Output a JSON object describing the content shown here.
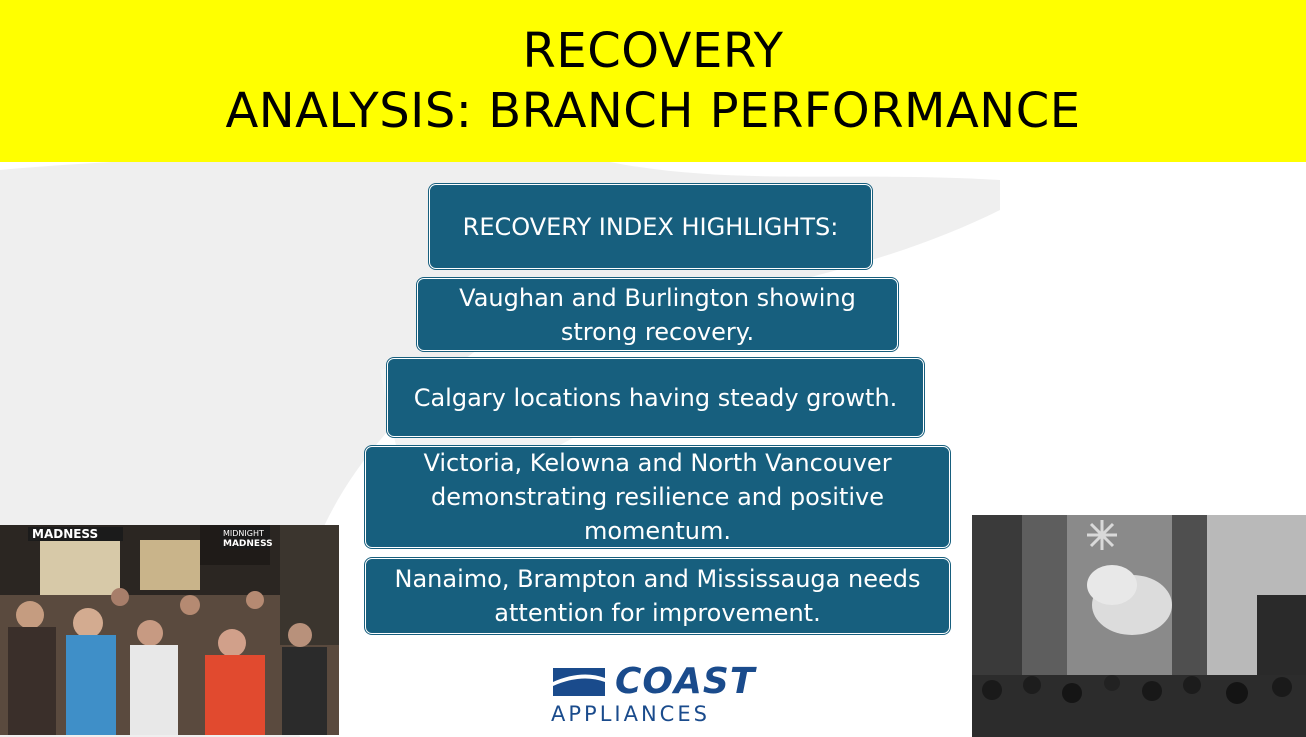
{
  "header": {
    "title_line1": "RECOVERY",
    "title_line2": "ANALYSIS: BRANCH PERFORMANCE"
  },
  "highlights": {
    "heading": "RECOVERY INDEX HIGHLIGHTS:",
    "items": [
      "Vaughan and Burlington showing strong recovery.",
      "Calgary locations having steady growth.",
      "Victoria, Kelowna and North Vancouver demonstrating resilience and positive momentum.",
      "Nanaimo, Brampton and Mississauga needs attention for improvement."
    ]
  },
  "left_photo": {
    "sign_left": "MADNESS",
    "sign_right_line1": "MIDNIGHT",
    "sign_right_line2": "MADNESS"
  },
  "logo": {
    "name": "COAST",
    "sub": "APPLIANCES",
    "icon": "coast-wave-icon"
  },
  "colors": {
    "band": "#ffff00",
    "box": "#175f7e",
    "logo": "#1a4b8c"
  }
}
